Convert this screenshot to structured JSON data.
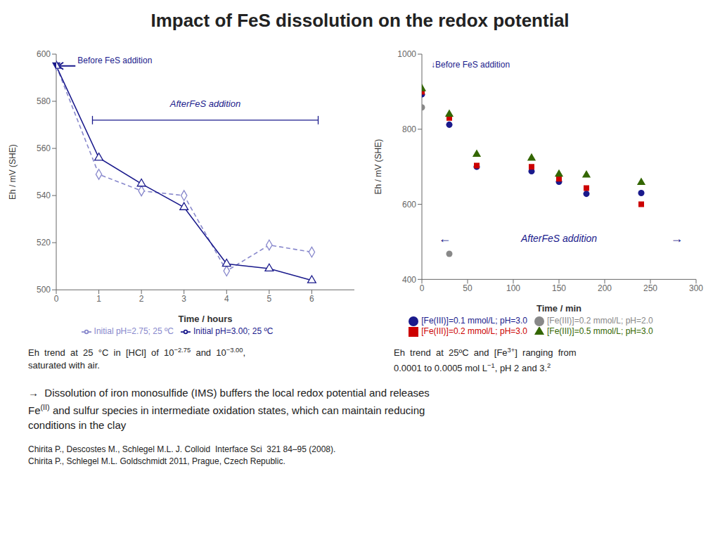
{
  "title": "Impact of FeS dissolution on the redox potential",
  "chart_data": [
    {
      "type": "line",
      "xlabel": "Time / hours",
      "ylabel": "Eh / mV (SHE)",
      "xlim": [
        0,
        7
      ],
      "ylim": [
        500,
        600
      ],
      "xticks": [
        0,
        1,
        2,
        3,
        4,
        5,
        6
      ],
      "yticks": [
        500,
        520,
        540,
        560,
        580,
        600
      ],
      "grid": false,
      "legend": "bottom",
      "series": [
        {
          "name": "Initial pH=2.75; 25 ºC",
          "color": "#8888cc",
          "line_style": "dashed",
          "marker": "diamond",
          "x": [
            0,
            1,
            2,
            3,
            4,
            5,
            6
          ],
          "values": [
            595,
            549,
            542,
            540,
            508,
            519,
            516
          ]
        },
        {
          "name": "Initial pH=3.00; 25 ºC",
          "color": "#1a1a8c",
          "line_style": "solid",
          "marker": "triangle",
          "x": [
            0,
            1,
            2,
            3,
            4,
            5,
            6
          ],
          "values": [
            595,
            556,
            545,
            535,
            511,
            509,
            504
          ]
        }
      ],
      "annotations": [
        {
          "text": "Before FeS addition",
          "x": 0.5,
          "y": 595.5,
          "color": "#1a1a8c",
          "arrow": [
            [
              0.45,
              595
            ],
            [
              0.05,
              595
            ]
          ],
          "point": [
            0,
            595
          ]
        },
        {
          "text": "AfterFeS addition",
          "x": 3.5,
          "y": 577,
          "color": "#1a1a8c",
          "bracket": [
            [
              0.85,
              572
            ],
            [
              6.15,
              572
            ]
          ]
        }
      ]
    },
    {
      "type": "scatter",
      "xlabel": "Time / min",
      "ylabel": "Eh / mV (SHE)",
      "xlim": [
        0,
        300
      ],
      "ylim": [
        400,
        1000
      ],
      "xticks": [
        0,
        50,
        100,
        150,
        200,
        250,
        300
      ],
      "yticks": [
        400,
        600,
        800,
        1000
      ],
      "grid": false,
      "legend": "bottom",
      "series": [
        {
          "name": "[Fe(III)]=0.1 mmol/L; pH=3.0",
          "color": "#1a1a8c",
          "marker": "circle",
          "x": [
            0,
            30,
            60,
            120,
            150,
            180,
            240
          ],
          "values": [
            893,
            812,
            700,
            688,
            660,
            628,
            630
          ]
        },
        {
          "name": "[Fe(III)]=0.2 mmol/L; pH=3.0",
          "color": "#cc0000",
          "marker": "square",
          "x": [
            0,
            30,
            60,
            120,
            150,
            180,
            240
          ],
          "values": [
            900,
            830,
            703,
            700,
            668,
            643,
            600
          ]
        },
        {
          "name": "[Fe(III)]=0.5 mmol/L; pH=3.0",
          "color": "#336600",
          "marker": "triangle",
          "x": [
            0,
            30,
            60,
            120,
            150,
            180,
            240
          ],
          "values": [
            908,
            840,
            733,
            723,
            680,
            678,
            658
          ]
        },
        {
          "name": "[Fe(III)]=0.2 mmol/L; pH=2.0",
          "color": "#888888",
          "marker": "circle",
          "x": [
            0,
            30
          ],
          "values": [
            858,
            468
          ]
        }
      ],
      "annotations": [
        {
          "text": "↓Before FeS addition",
          "x": 10,
          "y": 980,
          "color": "#1a1a8c"
        },
        {
          "text": "←",
          "x": 18,
          "y": 510,
          "color": "#1a1a8c"
        },
        {
          "text": "AfterFeS addition",
          "x": 150,
          "y": 510,
          "color": "#1a1a8c"
        },
        {
          "text": "→",
          "x": 272,
          "y": 510,
          "color": "#1a1a8c"
        }
      ]
    }
  ],
  "annotations": [
    [
      [
        "Eh  trend  at  25  °C  in  [HCl]  of  10",
        "−2.75",
        "  and  10",
        "−3.00",
        ","
      ],
      [
        "saturated with air."
      ]
    ],
    [
      [
        "Eh  trend  at  25ºC  and  [Fe",
        "3+",
        "]  ranging  from"
      ],
      [
        "0.0001 to 0.0005 mol L",
        "−1",
        ", pH 2 and 3.",
        "2"
      ]
    ],
    [
      [
        "→  Dissolution of iron monosulfide (IMS) buffers the local redox potential and releases"
      ],
      [
        "Fe",
        "(II)",
        " and sulfur species in intermediate oxidation states, which can maintain reducing"
      ],
      [
        "conditions in the clay"
      ]
    ],
    [
      [
        "Chirita P., Descostes M., Schlegel M.L. J. Colloid  Interface Sci  321 84–95 (2008)."
      ],
      [
        "Chirita P., Schlegel M.L. Goldschmidt 2011, Prague, Czech Republic."
      ]
    ]
  ]
}
